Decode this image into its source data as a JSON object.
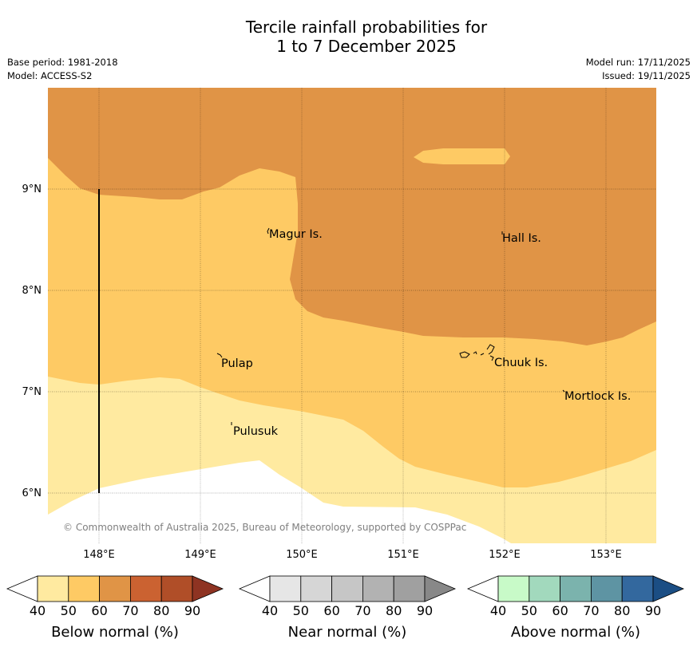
{
  "title": {
    "line1": "Tercile rainfall probabilities for",
    "line2": "1 to 7 December 2025"
  },
  "meta": {
    "base_period": "Base period: 1981-2018",
    "model": "Model: ACCESS-S2",
    "model_run": "Model run: 17/11/2025",
    "issued": "Issued: 19/11/2025"
  },
  "map": {
    "lon_labels": [
      "148°E",
      "149°E",
      "150°E",
      "151°E",
      "152°E",
      "153°E"
    ],
    "lat_labels": [
      "9°N",
      "8°N",
      "7°N",
      "6°N"
    ],
    "places": [
      {
        "name": "Magur Is."
      },
      {
        "name": "Hall Is."
      },
      {
        "name": "Pulap"
      },
      {
        "name": "Chuuk Is."
      },
      {
        "name": "Mortlock Is."
      },
      {
        "name": "Pulusuk"
      }
    ],
    "copyright": "© Commonwealth of Australia 2025, Bureau of Meteorology, supported by COSPPac"
  },
  "legend": {
    "ticks": [
      "40",
      "50",
      "60",
      "70",
      "80",
      "90"
    ],
    "below": {
      "label": "Below normal (%)",
      "colors": [
        "#ffffff",
        "#ffeaa0",
        "#feca64",
        "#e09446",
        "#cb6231",
        "#b04e28",
        "#8e3322"
      ]
    },
    "near": {
      "label": "Near normal (%)",
      "colors": [
        "#ffffff",
        "#e6e6e6",
        "#d6d6d6",
        "#c6c6c6",
        "#b2b2b2",
        "#a0a0a0",
        "#888888"
      ]
    },
    "above": {
      "label": "Above normal (%)",
      "colors": [
        "#ffffff",
        "#c8fac8",
        "#a2d9bd",
        "#7bb3ad",
        "#5e94a3",
        "#33689e",
        "#1b4e84"
      ]
    }
  }
}
